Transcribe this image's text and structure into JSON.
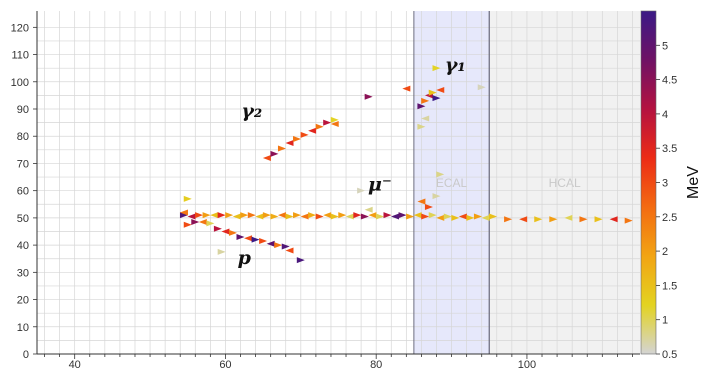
{
  "chart_data": {
    "type": "scatter",
    "title": "",
    "xlabel": "",
    "ylabel": "",
    "xlim": [
      35,
      115
    ],
    "ylim": [
      0,
      126
    ],
    "x_ticks": [
      40,
      60,
      80,
      100
    ],
    "y_ticks": [
      0,
      10,
      20,
      30,
      40,
      50,
      60,
      70,
      80,
      90,
      100,
      110,
      120
    ],
    "grid": true,
    "regions": [
      {
        "name": "ECAL",
        "x_range": [
          85,
          95
        ],
        "color": "#e6e8fb"
      },
      {
        "name": "HCAL",
        "x_range": [
          95,
          115
        ],
        "color": "#f1f1f1"
      }
    ],
    "colorbar": {
      "label": "MeV",
      "min": 0.5,
      "max": 5.5,
      "ticks": [
        "0.5",
        "1",
        "1.5",
        "2",
        "2.5",
        "3",
        "3.5",
        "4",
        "4.5",
        "5"
      ],
      "colors": [
        "#d4d4d4",
        "#e3d321",
        "#f2a413",
        "#f36b12",
        "#ec2b16",
        "#b41240",
        "#6f1265",
        "#3b1a86"
      ]
    },
    "annotations": [
      {
        "text": "γ₁",
        "x": 90.5,
        "y": 104
      },
      {
        "text": "γ₂",
        "x": 63.5,
        "y": 87
      },
      {
        "text": "μ⁻",
        "x": 80.5,
        "y": 60
      },
      {
        "text": "p",
        "x": 62.5,
        "y": 33
      }
    ],
    "points": [
      [
        54.5,
        51,
        5.2
      ],
      [
        55.5,
        50.5,
        4
      ],
      [
        56.5,
        51,
        3
      ],
      [
        57.5,
        51,
        2
      ],
      [
        58.5,
        51,
        1.5
      ],
      [
        59.5,
        51,
        3.5
      ],
      [
        60.5,
        51,
        2
      ],
      [
        61.5,
        50.5,
        1.5
      ],
      [
        62.5,
        51,
        2
      ],
      [
        63.5,
        51,
        2.5
      ],
      [
        64.5,
        50.5,
        1.5
      ],
      [
        65.5,
        51,
        2
      ],
      [
        66.5,
        50.5,
        1.8
      ],
      [
        67.5,
        51,
        2.5
      ],
      [
        68.5,
        50.5,
        1.5
      ],
      [
        69.5,
        51,
        2
      ],
      [
        70.5,
        50.5,
        2.5
      ],
      [
        71.5,
        51,
        1.8
      ],
      [
        72.5,
        50.5,
        3
      ],
      [
        73.5,
        51,
        2
      ],
      [
        74.5,
        50.5,
        1.5
      ],
      [
        75.5,
        51,
        2
      ],
      [
        76.5,
        50.5,
        1
      ],
      [
        77.5,
        51,
        3.5
      ],
      [
        78.5,
        50.5,
        4.5
      ],
      [
        79.5,
        51,
        2
      ],
      [
        80.5,
        50.5,
        1
      ],
      [
        81.5,
        51,
        4
      ],
      [
        82.5,
        50.5,
        5.2
      ],
      [
        83.5,
        51,
        5
      ],
      [
        84.5,
        50.5,
        2
      ],
      [
        85.5,
        51,
        1.5
      ],
      [
        86.5,
        50.5,
        3
      ],
      [
        87.5,
        51,
        1
      ],
      [
        88.5,
        50,
        2
      ],
      [
        89.5,
        50.5,
        1
      ],
      [
        90.5,
        50,
        1.5
      ],
      [
        91.5,
        50.5,
        3
      ],
      [
        92.5,
        50,
        1.5
      ],
      [
        93.5,
        50.5,
        2
      ],
      [
        94.5,
        50,
        1
      ],
      [
        95.5,
        50.5,
        1.5
      ],
      [
        97.5,
        49.5,
        2.5
      ],
      [
        99.5,
        49.5,
        3
      ],
      [
        101.5,
        49.5,
        1.5
      ],
      [
        103.5,
        49.5,
        2
      ],
      [
        105.5,
        50,
        1
      ],
      [
        107.5,
        49.5,
        2.5
      ],
      [
        109.5,
        49.5,
        1.5
      ],
      [
        111.5,
        49.5,
        3.5
      ],
      [
        113.5,
        49,
        2.5
      ],
      [
        55,
        57,
        1.3
      ],
      [
        54.5,
        52,
        2.5
      ],
      [
        55,
        47.5,
        3
      ],
      [
        56,
        48.5,
        4.5
      ],
      [
        57,
        48.5,
        2.5
      ],
      [
        58,
        48,
        1
      ],
      [
        59,
        46,
        4
      ],
      [
        60,
        45,
        3.5
      ],
      [
        61,
        44.5,
        2.5
      ],
      [
        62,
        43,
        5
      ],
      [
        63,
        42.5,
        3
      ],
      [
        64,
        42,
        5.5
      ],
      [
        65,
        41.5,
        3
      ],
      [
        66,
        40.5,
        5
      ],
      [
        67,
        40,
        2.5
      ],
      [
        68,
        39.5,
        5.2
      ],
      [
        68.5,
        38,
        3
      ],
      [
        70,
        34.5,
        5.3
      ],
      [
        59.5,
        37.5,
        0.7
      ],
      [
        65.5,
        72,
        3
      ],
      [
        66.5,
        73.5,
        4.5
      ],
      [
        67.5,
        75.5,
        2.5
      ],
      [
        68.5,
        77.5,
        3.5
      ],
      [
        69.5,
        79,
        2.5
      ],
      [
        70.5,
        80.5,
        3
      ],
      [
        71.5,
        82,
        3.5
      ],
      [
        72.5,
        83.5,
        2.5
      ],
      [
        73.5,
        85,
        4
      ],
      [
        74.5,
        84.5,
        2.5
      ],
      [
        74.5,
        86,
        1.2
      ],
      [
        79,
        94.5,
        4.5
      ],
      [
        84,
        97.5,
        3
      ],
      [
        86,
        91,
        5
      ],
      [
        86.5,
        93,
        2.5
      ],
      [
        87,
        95,
        4
      ],
      [
        87.5,
        96,
        1.5
      ],
      [
        88,
        94,
        5.5
      ],
      [
        88.5,
        97,
        3
      ],
      [
        88,
        105,
        1.2
      ],
      [
        86,
        83.5,
        0.8
      ],
      [
        86.5,
        86.5,
        0.7
      ],
      [
        94,
        98,
        0.6
      ],
      [
        78,
        60,
        0.6
      ],
      [
        79,
        53,
        0.8
      ],
      [
        88,
        58,
        0.7
      ],
      [
        88.5,
        66,
        0.8
      ],
      [
        86,
        56,
        2.5
      ],
      [
        87,
        54,
        3
      ]
    ]
  }
}
